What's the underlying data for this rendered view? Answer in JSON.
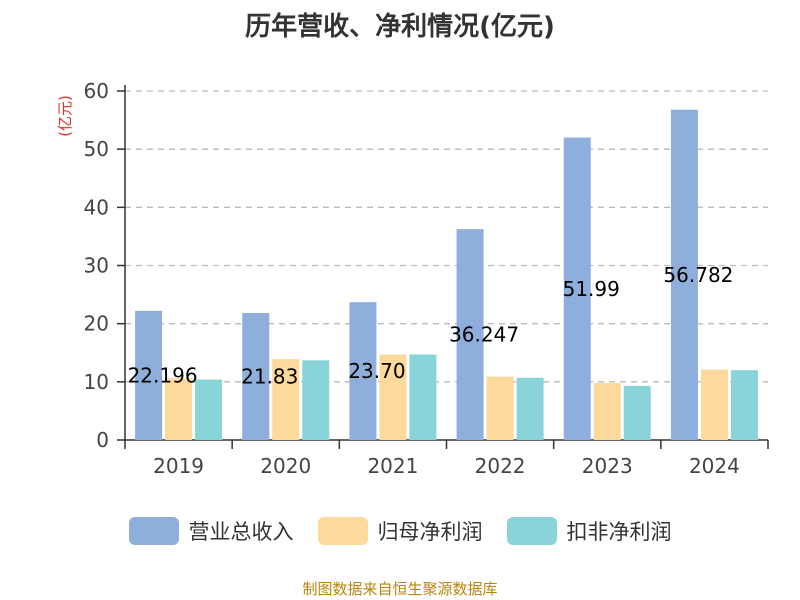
{
  "chart_data": {
    "type": "bar",
    "title": "历年营收、净利情况(亿元)",
    "ylabel": "(亿元)",
    "categories": [
      "2019",
      "2020",
      "2021",
      "2022",
      "2023",
      "2024"
    ],
    "series": [
      {
        "name": "营业总收入",
        "color": "#8eaedb",
        "values": [
          22.196,
          21.83,
          23.7,
          36.247,
          51.99,
          56.782
        ]
      },
      {
        "name": "归母净利润",
        "color": "#fdd99b",
        "values": [
          10.6,
          13.9,
          14.7,
          10.9,
          9.8,
          12.1
        ]
      },
      {
        "name": "扣非净利润",
        "color": "#88d4d8",
        "values": [
          10.4,
          13.7,
          14.7,
          10.7,
          9.3,
          12.0
        ]
      }
    ],
    "data_labels": [
      "22.196",
      "21.83",
      "23.70",
      "36.247",
      "51.99",
      "56.782"
    ],
    "ylim": [
      0,
      60
    ],
    "yticks": [
      "0",
      "10",
      "20",
      "30",
      "40",
      "50",
      "60"
    ],
    "grid": true,
    "legend_position": "bottom"
  },
  "source": "制图数据来自恒生聚源数据库"
}
